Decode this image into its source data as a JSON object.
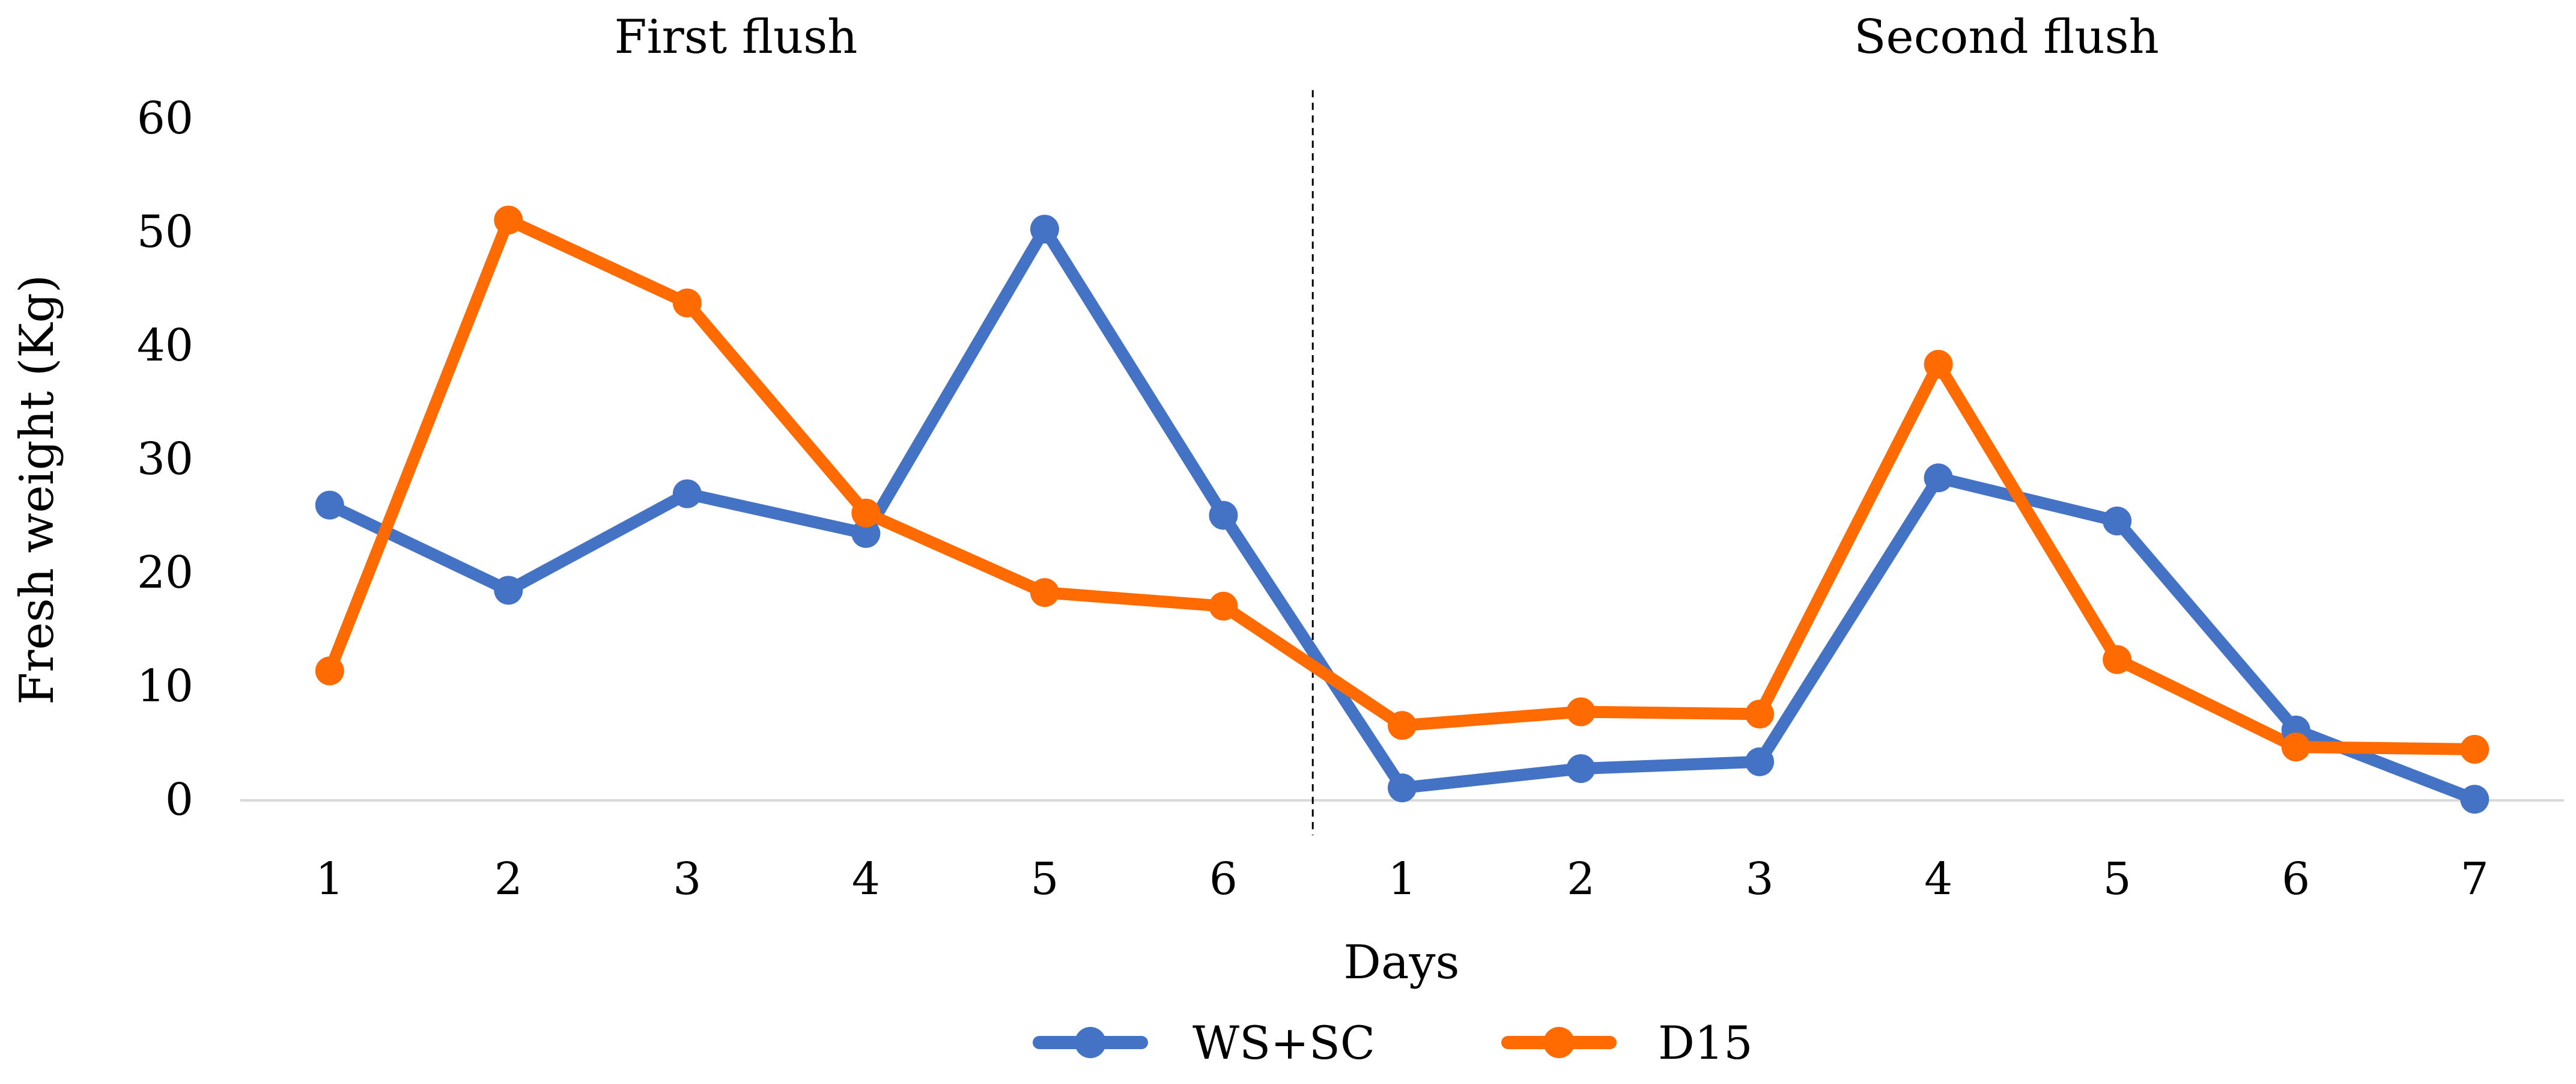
{
  "chart_data": {
    "type": "line",
    "title": "",
    "xlabel": "Days",
    "ylabel": "Fresh weight (Kg)",
    "ylim": [
      0,
      60
    ],
    "yticks": [
      0,
      10,
      20,
      30,
      40,
      50,
      60
    ],
    "ytick_labels": [
      "0",
      "10",
      "20",
      "30",
      "40",
      "50",
      "60"
    ],
    "grid": false,
    "legend_position": "bottom-center",
    "sections": [
      {
        "label": "First flush",
        "days": [
          "1",
          "2",
          "3",
          "4",
          "5",
          "6"
        ]
      },
      {
        "label": "Second flush",
        "days": [
          "1",
          "2",
          "3",
          "4",
          "5",
          "6",
          "7"
        ]
      }
    ],
    "categories": [
      "1",
      "2",
      "3",
      "4",
      "5",
      "6",
      "1",
      "2",
      "3",
      "4",
      "5",
      "6",
      "7"
    ],
    "separator_after_index": 5,
    "series": [
      {
        "name": "WS+SC",
        "color": "#4472C4",
        "values": [
          26.0,
          18.5,
          27.0,
          23.5,
          50.3,
          25.1,
          1.1,
          2.8,
          3.4,
          28.4,
          24.6,
          6.2,
          0.1
        ]
      },
      {
        "name": "D15",
        "color": "#FF6B00",
        "values": [
          11.4,
          51.1,
          43.8,
          25.3,
          18.3,
          17.1,
          6.6,
          7.8,
          7.6,
          38.4,
          12.4,
          4.7,
          4.5
        ]
      }
    ]
  }
}
